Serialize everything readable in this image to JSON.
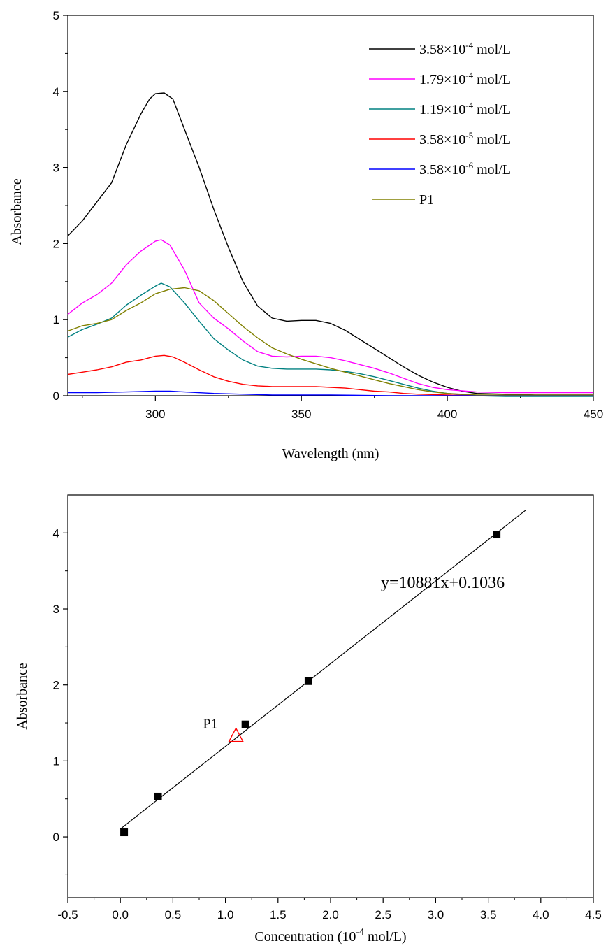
{
  "chart_data": [
    {
      "type": "line",
      "xlabel": "Wavelength (nm)",
      "ylabel": "Absorbance",
      "xlim": [
        270,
        450
      ],
      "ylim": [
        0,
        5
      ],
      "x_ticks": [
        "300",
        "350",
        "400",
        "450"
      ],
      "y_ticks": [
        "0",
        "1",
        "2",
        "3",
        "4",
        "5"
      ],
      "legend_position": "top-right",
      "grid": false,
      "series": [
        {
          "name_main": "3.58×10",
          "name_exp": "-4",
          "name_unit": " mol/L",
          "color": "#000000",
          "points": [
            [
              270,
              2.1
            ],
            [
              275,
              2.3
            ],
            [
              280,
              2.55
            ],
            [
              285,
              2.8
            ],
            [
              290,
              3.3
            ],
            [
              295,
              3.7
            ],
            [
              298,
              3.9
            ],
            [
              300,
              3.97
            ],
            [
              303,
              3.98
            ],
            [
              306,
              3.9
            ],
            [
              310,
              3.5
            ],
            [
              315,
              3.0
            ],
            [
              320,
              2.45
            ],
            [
              325,
              1.95
            ],
            [
              330,
              1.5
            ],
            [
              335,
              1.18
            ],
            [
              340,
              1.02
            ],
            [
              345,
              0.98
            ],
            [
              350,
              0.99
            ],
            [
              355,
              0.99
            ],
            [
              360,
              0.95
            ],
            [
              365,
              0.86
            ],
            [
              370,
              0.74
            ],
            [
              375,
              0.62
            ],
            [
              380,
              0.5
            ],
            [
              385,
              0.38
            ],
            [
              390,
              0.27
            ],
            [
              395,
              0.18
            ],
            [
              400,
              0.11
            ],
            [
              405,
              0.06
            ],
            [
              410,
              0.03
            ],
            [
              420,
              0.02
            ],
            [
              430,
              0.01
            ],
            [
              450,
              0.01
            ]
          ]
        },
        {
          "name_main": "1.79×10",
          "name_exp": "-4",
          "name_unit": " mol/L",
          "color": "#ff00ff",
          "points": [
            [
              270,
              1.07
            ],
            [
              275,
              1.22
            ],
            [
              280,
              1.33
            ],
            [
              285,
              1.48
            ],
            [
              290,
              1.72
            ],
            [
              295,
              1.9
            ],
            [
              300,
              2.03
            ],
            [
              302,
              2.05
            ],
            [
              305,
              1.98
            ],
            [
              310,
              1.65
            ],
            [
              315,
              1.22
            ],
            [
              320,
              1.02
            ],
            [
              325,
              0.88
            ],
            [
              330,
              0.72
            ],
            [
              335,
              0.58
            ],
            [
              340,
              0.52
            ],
            [
              345,
              0.51
            ],
            [
              350,
              0.52
            ],
            [
              355,
              0.52
            ],
            [
              360,
              0.5
            ],
            [
              365,
              0.46
            ],
            [
              370,
              0.41
            ],
            [
              375,
              0.36
            ],
            [
              380,
              0.3
            ],
            [
              385,
              0.23
            ],
            [
              390,
              0.16
            ],
            [
              395,
              0.11
            ],
            [
              400,
              0.08
            ],
            [
              410,
              0.05
            ],
            [
              420,
              0.04
            ],
            [
              450,
              0.04
            ]
          ]
        },
        {
          "name_main": "1.19×10",
          "name_exp": "-4",
          "name_unit": " mol/L",
          "color": "#008080",
          "points": [
            [
              270,
              0.77
            ],
            [
              275,
              0.87
            ],
            [
              280,
              0.94
            ],
            [
              285,
              1.02
            ],
            [
              290,
              1.19
            ],
            [
              295,
              1.32
            ],
            [
              300,
              1.44
            ],
            [
              302,
              1.48
            ],
            [
              305,
              1.43
            ],
            [
              310,
              1.22
            ],
            [
              315,
              0.98
            ],
            [
              320,
              0.75
            ],
            [
              325,
              0.6
            ],
            [
              330,
              0.47
            ],
            [
              335,
              0.39
            ],
            [
              340,
              0.36
            ],
            [
              345,
              0.35
            ],
            [
              350,
              0.35
            ],
            [
              355,
              0.35
            ],
            [
              360,
              0.34
            ],
            [
              365,
              0.32
            ],
            [
              370,
              0.29
            ],
            [
              375,
              0.25
            ],
            [
              380,
              0.2
            ],
            [
              385,
              0.15
            ],
            [
              390,
              0.1
            ],
            [
              395,
              0.06
            ],
            [
              400,
              0.03
            ],
            [
              410,
              0.0
            ],
            [
              420,
              -0.01
            ],
            [
              450,
              -0.01
            ]
          ]
        },
        {
          "name_main": "3.58×10",
          "name_exp": "-5",
          "name_unit": " mol/L",
          "color": "#ff0000",
          "points": [
            [
              270,
              0.28
            ],
            [
              275,
              0.31
            ],
            [
              280,
              0.34
            ],
            [
              285,
              0.38
            ],
            [
              290,
              0.44
            ],
            [
              295,
              0.47
            ],
            [
              300,
              0.52
            ],
            [
              303,
              0.53
            ],
            [
              306,
              0.51
            ],
            [
              310,
              0.44
            ],
            [
              315,
              0.34
            ],
            [
              320,
              0.25
            ],
            [
              325,
              0.19
            ],
            [
              330,
              0.15
            ],
            [
              335,
              0.13
            ],
            [
              340,
              0.12
            ],
            [
              350,
              0.12
            ],
            [
              355,
              0.12
            ],
            [
              360,
              0.11
            ],
            [
              365,
              0.1
            ],
            [
              370,
              0.08
            ],
            [
              375,
              0.06
            ],
            [
              380,
              0.05
            ],
            [
              385,
              0.03
            ],
            [
              390,
              0.02
            ],
            [
              400,
              0.01
            ],
            [
              410,
              0.0
            ],
            [
              450,
              0.0
            ]
          ]
        },
        {
          "name_main": "3.58×10",
          "name_exp": "-6",
          "name_unit": " mol/L",
          "color": "#0000ff",
          "points": [
            [
              270,
              0.04
            ],
            [
              280,
              0.04
            ],
            [
              290,
              0.05
            ],
            [
              300,
              0.06
            ],
            [
              305,
              0.06
            ],
            [
              310,
              0.05
            ],
            [
              320,
              0.03
            ],
            [
              330,
              0.02
            ],
            [
              340,
              0.01
            ],
            [
              350,
              0.01
            ],
            [
              360,
              0.01
            ],
            [
              380,
              0.0
            ],
            [
              400,
              0.0
            ],
            [
              450,
              0.0
            ]
          ]
        },
        {
          "name_main": "P1",
          "name_exp": "",
          "name_unit": "",
          "color": "#808000",
          "points": [
            [
              270,
              0.85
            ],
            [
              275,
              0.92
            ],
            [
              280,
              0.95
            ],
            [
              285,
              1.0
            ],
            [
              290,
              1.12
            ],
            [
              295,
              1.22
            ],
            [
              300,
              1.34
            ],
            [
              305,
              1.4
            ],
            [
              310,
              1.42
            ],
            [
              315,
              1.38
            ],
            [
              320,
              1.25
            ],
            [
              325,
              1.08
            ],
            [
              330,
              0.91
            ],
            [
              335,
              0.76
            ],
            [
              340,
              0.63
            ],
            [
              345,
              0.55
            ],
            [
              350,
              0.48
            ],
            [
              355,
              0.42
            ],
            [
              360,
              0.36
            ],
            [
              365,
              0.31
            ],
            [
              370,
              0.26
            ],
            [
              375,
              0.21
            ],
            [
              380,
              0.16
            ],
            [
              385,
              0.12
            ],
            [
              390,
              0.08
            ],
            [
              395,
              0.05
            ],
            [
              400,
              0.03
            ],
            [
              410,
              0.01
            ],
            [
              420,
              0.01
            ],
            [
              450,
              0.01
            ]
          ]
        }
      ]
    },
    {
      "type": "scatter",
      "xlabel_main": "Concentration (10",
      "xlabel_exp": "-4",
      "xlabel_unit": " mol/L)",
      "ylabel": "Absorbance",
      "xlim": [
        -0.5,
        4.5
      ],
      "ylim": [
        -0.8,
        4.5
      ],
      "x_ticks": [
        "-0.5",
        "0.0",
        "0.5",
        "1.0",
        "1.5",
        "2.0",
        "2.5",
        "3.0",
        "3.5",
        "4.0",
        "4.5"
      ],
      "y_ticks": [
        "0",
        "1",
        "2",
        "3",
        "4"
      ],
      "grid": false,
      "points": [
        [
          0.0358,
          0.06
        ],
        [
          0.358,
          0.53
        ],
        [
          1.19,
          1.48
        ],
        [
          1.79,
          2.05
        ],
        [
          3.58,
          3.98
        ]
      ],
      "p1_point": {
        "label": "P1",
        "x": 1.1,
        "y": 1.32,
        "color": "#ff0000"
      },
      "fit": {
        "equation": "y=10881x+0.1036",
        "slope": 1.0881,
        "intercept": 0.1036,
        "x_range": [
          0.0,
          3.86
        ]
      }
    }
  ]
}
